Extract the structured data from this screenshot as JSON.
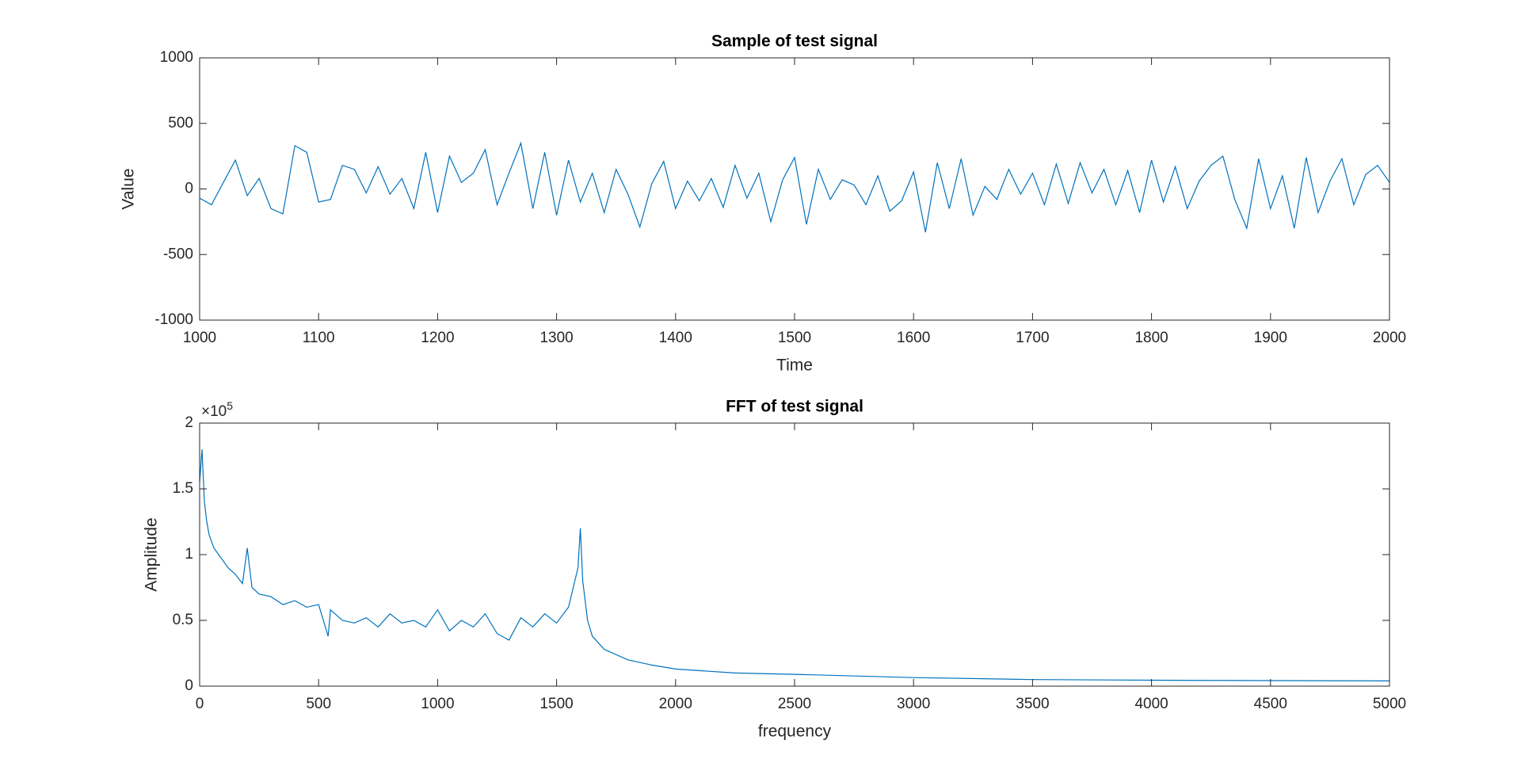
{
  "chart_data": [
    {
      "type": "line",
      "title": "Sample of test signal",
      "xlabel": "Time",
      "ylabel": "Value",
      "color": "#0072bd",
      "x": [
        1000,
        1010,
        1020,
        1030,
        1040,
        1050,
        1060,
        1070,
        1080,
        1090,
        1100,
        1110,
        1120,
        1130,
        1140,
        1150,
        1160,
        1170,
        1180,
        1190,
        1200,
        1210,
        1220,
        1230,
        1240,
        1250,
        1260,
        1270,
        1280,
        1290,
        1300,
        1310,
        1320,
        1330,
        1340,
        1350,
        1360,
        1370,
        1380,
        1390,
        1400,
        1410,
        1420,
        1430,
        1440,
        1450,
        1460,
        1470,
        1480,
        1490,
        1500,
        1510,
        1520,
        1530,
        1540,
        1550,
        1560,
        1570,
        1580,
        1590,
        1600,
        1610,
        1620,
        1630,
        1640,
        1650,
        1660,
        1670,
        1680,
        1690,
        1700,
        1710,
        1720,
        1730,
        1740,
        1750,
        1760,
        1770,
        1780,
        1790,
        1800,
        1810,
        1820,
        1830,
        1840,
        1850,
        1860,
        1870,
        1880,
        1890,
        1900,
        1910,
        1920,
        1930,
        1940,
        1950,
        1960,
        1970,
        1980,
        1990,
        2000
      ],
      "values": [
        -70,
        -120,
        50,
        220,
        -50,
        80,
        -150,
        -190,
        330,
        280,
        -100,
        -80,
        180,
        150,
        -30,
        170,
        -40,
        80,
        -150,
        280,
        -180,
        250,
        50,
        120,
        300,
        -120,
        120,
        350,
        -150,
        280,
        -200,
        220,
        -100,
        120,
        -180,
        150,
        -40,
        -290,
        40,
        210,
        -150,
        60,
        -90,
        80,
        -140,
        180,
        -70,
        120,
        -250,
        70,
        240,
        -270,
        150,
        -80,
        70,
        30,
        -120,
        100,
        -170,
        -90,
        130,
        -330,
        200,
        -150,
        230,
        -200,
        20,
        -80,
        150,
        -40,
        120,
        -120,
        190,
        -110,
        200,
        -30,
        150,
        -120,
        140,
        -180,
        220,
        -100,
        170,
        -150,
        60,
        180,
        250,
        -80,
        -300,
        230,
        -150,
        100,
        -300,
        240,
        -180,
        60,
        230,
        -120,
        110,
        180,
        50
      ],
      "xlim": [
        1000,
        2000
      ],
      "xticks": [
        1000,
        1100,
        1200,
        1300,
        1400,
        1500,
        1600,
        1700,
        1800,
        1900,
        2000
      ],
      "ylim": [
        -1000,
        1000
      ],
      "yticks": [
        -1000,
        -500,
        0,
        500,
        1000
      ]
    },
    {
      "type": "line",
      "title": "FFT of test signal",
      "xlabel": "frequency",
      "ylabel": "Amplitude",
      "color": "#0072bd",
      "axis_multiplier": {
        "base": "×10",
        "exponent": "5"
      },
      "x": [
        0,
        10,
        20,
        30,
        40,
        50,
        60,
        80,
        100,
        120,
        150,
        180,
        200,
        220,
        250,
        300,
        350,
        400,
        450,
        500,
        540,
        550,
        600,
        650,
        700,
        750,
        800,
        850,
        900,
        950,
        1000,
        1050,
        1100,
        1150,
        1200,
        1250,
        1300,
        1350,
        1400,
        1450,
        1500,
        1550,
        1570,
        1590,
        1600,
        1610,
        1630,
        1650,
        1700,
        1800,
        1900,
        2000,
        2250,
        2500,
        3000,
        3500,
        4000,
        4500,
        5000
      ],
      "values": [
        155000,
        180000,
        140000,
        125000,
        115000,
        110000,
        105000,
        100000,
        95000,
        90000,
        85000,
        78000,
        105000,
        75000,
        70000,
        68000,
        62000,
        65000,
        60000,
        62000,
        38000,
        58000,
        50000,
        48000,
        52000,
        45000,
        55000,
        48000,
        50000,
        45000,
        58000,
        42000,
        50000,
        45000,
        55000,
        40000,
        35000,
        52000,
        45000,
        55000,
        48000,
        60000,
        75000,
        90000,
        120000,
        80000,
        50000,
        38000,
        28000,
        20000,
        16000,
        13000,
        10000,
        9000,
        6500,
        5000,
        4500,
        4200,
        4000
      ],
      "xlim": [
        0,
        5000
      ],
      "xticks": [
        0,
        500,
        1000,
        1500,
        2000,
        2500,
        3000,
        3500,
        4000,
        4500,
        5000
      ],
      "ylim": [
        0,
        200000
      ],
      "yticks": [
        0,
        {
          "value": 50000,
          "label": "0.5"
        },
        {
          "value": 100000,
          "label": "1"
        },
        {
          "value": 150000,
          "label": "1.5"
        },
        {
          "value": 200000,
          "label": "2"
        }
      ]
    }
  ]
}
